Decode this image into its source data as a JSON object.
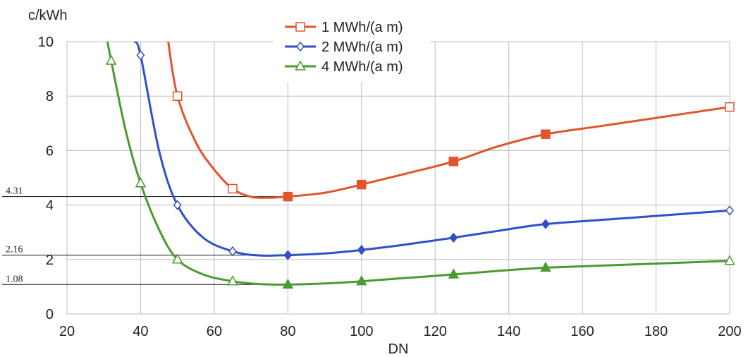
{
  "chart_data": {
    "type": "line",
    "title": "",
    "ylabel": "c/kWh",
    "xlabel": "DN",
    "xlim": [
      20,
      200
    ],
    "ylim": [
      0,
      10
    ],
    "x_ticks": [
      20,
      40,
      60,
      80,
      100,
      120,
      140,
      160,
      180,
      200
    ],
    "y_ticks": [
      0,
      2,
      4,
      6,
      8,
      10
    ],
    "x_tick_labels": [
      "20",
      "40",
      "60",
      "80",
      "100",
      "120",
      "140",
      "160",
      "180",
      "200"
    ],
    "y_tick_labels": [
      "0",
      "2",
      "4",
      "6",
      "8",
      "10"
    ],
    "grid": true,
    "legend_position": "top-center",
    "annotations": [
      {
        "label": "4.31",
        "y": 4.31
      },
      {
        "label": "2.16",
        "y": 2.16
      },
      {
        "label": "1.08",
        "y": 1.08
      }
    ],
    "series": [
      {
        "name": "1 MWh/(a m)",
        "color": "#e2542b",
        "marker": "square",
        "points": [
          {
            "x": 50,
            "y": 8.0,
            "filled": false
          },
          {
            "x": 65,
            "y": 4.6,
            "filled": false
          },
          {
            "x": 80,
            "y": 4.31,
            "filled": true
          },
          {
            "x": 100,
            "y": 4.75,
            "filled": true
          },
          {
            "x": 125,
            "y": 5.6,
            "filled": true
          },
          {
            "x": 150,
            "y": 6.6,
            "filled": true
          },
          {
            "x": 200,
            "y": 7.6,
            "filled": false
          }
        ],
        "curve": [
          [
            47.5,
            10.0
          ],
          [
            50,
            8.0
          ],
          [
            55,
            6.3
          ],
          [
            60,
            5.3
          ],
          [
            65,
            4.6
          ],
          [
            70,
            4.3
          ],
          [
            75,
            4.27
          ],
          [
            80,
            4.31
          ],
          [
            90,
            4.45
          ],
          [
            100,
            4.75
          ],
          [
            112,
            5.15
          ],
          [
            125,
            5.6
          ],
          [
            137,
            6.15
          ],
          [
            150,
            6.6
          ],
          [
            165,
            6.9
          ],
          [
            180,
            7.2
          ],
          [
            200,
            7.6
          ]
        ]
      },
      {
        "name": "2 MWh/(a m)",
        "color": "#3050c8",
        "marker": "diamond",
        "points": [
          {
            "x": 40,
            "y": 9.5,
            "filled": false
          },
          {
            "x": 50,
            "y": 4.0,
            "filled": false
          },
          {
            "x": 65,
            "y": 2.3,
            "filled": false
          },
          {
            "x": 80,
            "y": 2.16,
            "filled": true
          },
          {
            "x": 100,
            "y": 2.35,
            "filled": true
          },
          {
            "x": 125,
            "y": 2.8,
            "filled": true
          },
          {
            "x": 150,
            "y": 3.3,
            "filled": true
          },
          {
            "x": 200,
            "y": 3.8,
            "filled": false
          }
        ],
        "curve": [
          [
            38.4,
            10.0
          ],
          [
            40,
            9.5
          ],
          [
            45,
            6.0
          ],
          [
            50,
            4.0
          ],
          [
            57,
            2.8
          ],
          [
            65,
            2.3
          ],
          [
            72,
            2.15
          ],
          [
            80,
            2.16
          ],
          [
            90,
            2.22
          ],
          [
            100,
            2.35
          ],
          [
            112,
            2.55
          ],
          [
            125,
            2.8
          ],
          [
            137,
            3.05
          ],
          [
            150,
            3.3
          ],
          [
            170,
            3.5
          ],
          [
            200,
            3.8
          ]
        ]
      },
      {
        "name": "4 MWh/(a m)",
        "color": "#4a9a30",
        "marker": "triangle",
        "points": [
          {
            "x": 32,
            "y": 9.3,
            "filled": false
          },
          {
            "x": 40,
            "y": 4.8,
            "filled": false
          },
          {
            "x": 50,
            "y": 2.0,
            "filled": false
          },
          {
            "x": 65,
            "y": 1.2,
            "filled": false
          },
          {
            "x": 80,
            "y": 1.08,
            "filled": true
          },
          {
            "x": 100,
            "y": 1.2,
            "filled": true
          },
          {
            "x": 125,
            "y": 1.45,
            "filled": true
          },
          {
            "x": 150,
            "y": 1.7,
            "filled": true
          },
          {
            "x": 200,
            "y": 1.95,
            "filled": false
          }
        ],
        "curve": [
          [
            31.0,
            10.0
          ],
          [
            32,
            9.3
          ],
          [
            36,
            6.7
          ],
          [
            40,
            4.8
          ],
          [
            45,
            3.1
          ],
          [
            50,
            2.0
          ],
          [
            57,
            1.45
          ],
          [
            65,
            1.2
          ],
          [
            72,
            1.1
          ],
          [
            80,
            1.08
          ],
          [
            90,
            1.12
          ],
          [
            100,
            1.2
          ],
          [
            112,
            1.32
          ],
          [
            125,
            1.45
          ],
          [
            137,
            1.58
          ],
          [
            150,
            1.7
          ],
          [
            170,
            1.8
          ],
          [
            200,
            1.95
          ]
        ]
      }
    ]
  }
}
